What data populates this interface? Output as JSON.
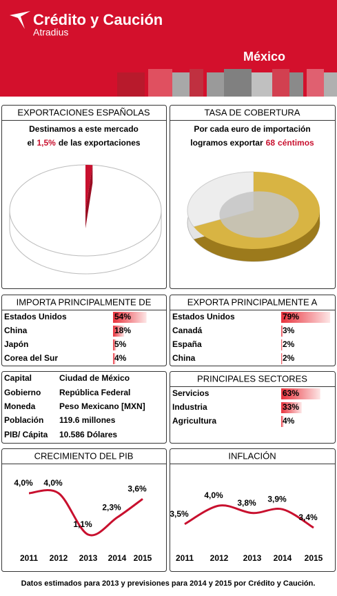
{
  "header": {
    "brand": "Crédito y Caución",
    "subbrand": "Atradius",
    "country": "México"
  },
  "chart_data": [
    {
      "type": "pie",
      "title": "EXPORTACIONES ESPAÑOLAS",
      "text_line1": "Destinamos a este mercado",
      "text_before": "el",
      "values": [
        1.5
      ],
      "value_labels": [
        "1,5%"
      ],
      "text_after": "de las exportaciones",
      "color": "#c8102e"
    },
    {
      "type": "coin",
      "title": "TASA DE COBERTURA",
      "text_line1": "Por cada euro de importación",
      "text_before": "logramos exportar",
      "values": [
        68
      ],
      "text_after": "céntimos",
      "color": "#d8b443"
    },
    {
      "type": "bar",
      "title": "IMPORTA PRINCIPALMENTE DE",
      "categories": [
        "Estados Unidos",
        "China",
        "Japón",
        "Corea del Sur"
      ],
      "values": [
        54,
        18,
        5,
        4
      ],
      "value_labels": [
        "54%",
        "18%",
        "5%",
        "4%"
      ],
      "color": "#e8323c"
    },
    {
      "type": "bar",
      "title": "EXPORTA PRINCIPALMENTE A",
      "categories": [
        "Estados Unidos",
        "Canadá",
        "España",
        "China"
      ],
      "values": [
        79,
        3,
        2,
        2
      ],
      "value_labels": [
        "79%",
        "3%",
        "2%",
        "2%"
      ],
      "color": "#e8323c"
    },
    {
      "type": "bar",
      "title": "PRINCIPALES SECTORES",
      "categories": [
        "Servicios",
        "Industria",
        "Agricultura"
      ],
      "values": [
        63,
        33,
        4
      ],
      "value_labels": [
        "63%",
        "33%",
        "4%"
      ],
      "color": "#e8323c"
    },
    {
      "type": "line",
      "title": "CRECIMIENTO DEL PIB",
      "categories": [
        "2011",
        "2012",
        "2013",
        "2014",
        "2015"
      ],
      "values": [
        4.0,
        4.0,
        1.1,
        2.3,
        3.6
      ],
      "value_labels": [
        "4,0%",
        "4,0%",
        "1,1%",
        "2,3%",
        "3,6%"
      ],
      "color": "#c8102e"
    },
    {
      "type": "line",
      "title": "INFLACIÓN",
      "categories": [
        "2011",
        "2012",
        "2013",
        "2014",
        "2015"
      ],
      "values": [
        3.5,
        4.0,
        3.8,
        3.9,
        3.4
      ],
      "value_labels": [
        "3,5%",
        "4,0%",
        "3,8%",
        "3,9%",
        "3,4%"
      ],
      "color": "#c8102e"
    }
  ],
  "info": {
    "rows": [
      [
        "Capital",
        "Ciudad de México"
      ],
      [
        "Gobierno",
        "República Federal"
      ],
      [
        "Moneda",
        "Peso Mexicano [MXN]"
      ],
      [
        "Población",
        "119.6 millones"
      ],
      [
        "PIB/ Cápita",
        "10.586 Dólares"
      ]
    ]
  },
  "footer": "Datos estimados para 2013 y previsiones para 2014 y 2015 por Crédito y Caución."
}
